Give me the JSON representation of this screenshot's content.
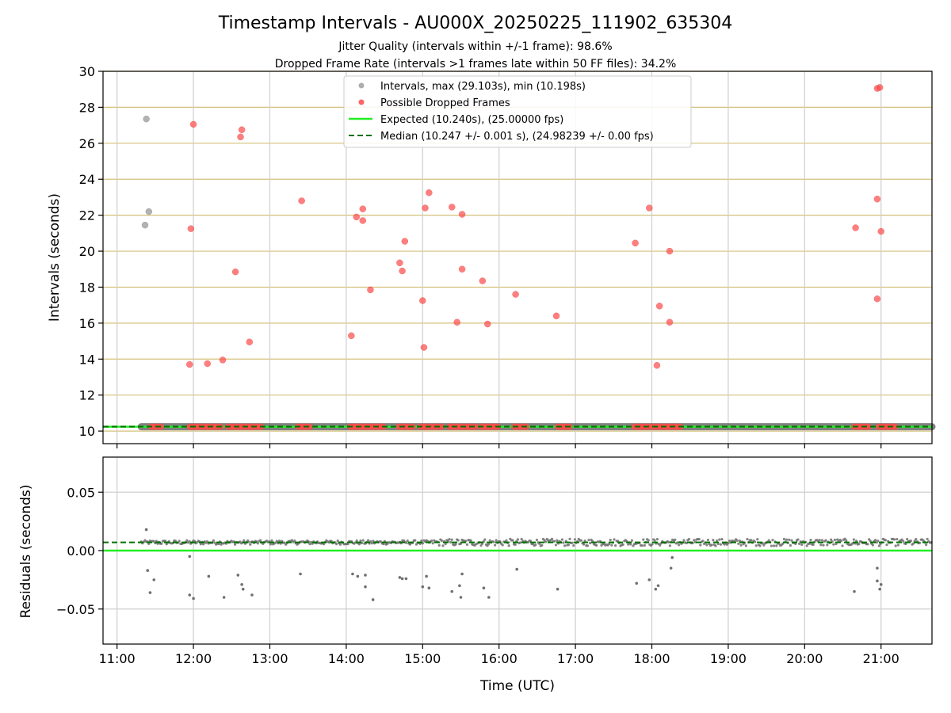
{
  "chart_data": [
    {
      "type": "scatter",
      "title": "Timestamp Intervals - AU000X_20250225_111902_635304",
      "subtitles": [
        "Jitter Quality (intervals within +/-1 frame): 98.6%",
        "Dropped Frame Rate (intervals >1 frames late within 50 FF files): 34.2%"
      ],
      "xlabel": "",
      "ylabel": "Intervals (seconds)",
      "xlim": [
        "10:49",
        "21:40"
      ],
      "ylim": [
        9.3,
        30
      ],
      "yticks": [
        10,
        12,
        14,
        16,
        18,
        20,
        22,
        24,
        26,
        28,
        30
      ],
      "grid_x": true,
      "grid_y": true,
      "grid_y_color": "#d4c07a",
      "legend_position": "upper-center",
      "legend": [
        {
          "label": "Intervals, max (29.103s), min (10.198s)",
          "kind": "marker",
          "color": "#a0a0a0"
        },
        {
          "label": "Possible Dropped Frames",
          "kind": "marker",
          "color": "#ff4a4a"
        },
        {
          "label": "Expected (10.240s), (25.00000 fps)",
          "kind": "solid-line",
          "color": "#22ee22"
        },
        {
          "label": "Median (10.247 +/- 0.001 s), (24.98239 +/- 0.00 fps)",
          "kind": "dashed-line",
          "color": "#007000"
        }
      ],
      "expected": 10.24,
      "median": 10.247,
      "intervals": {
        "name": "Intervals",
        "color": "#a0a0a0",
        "points": [
          [
            "11:23",
            27.35
          ],
          [
            "11:25",
            22.2
          ],
          [
            "11:22",
            21.45
          ]
        ],
        "baseline": {
          "x_start": "11:19",
          "x_end": "21:40",
          "y": 10.24
        }
      },
      "dropped": {
        "name": "Possible Dropped Frames",
        "color": "#ff4a4a",
        "points": [
          [
            "12:00",
            27.05
          ],
          [
            "12:38",
            26.75
          ],
          [
            "12:37",
            26.35
          ],
          [
            "11:58",
            21.25
          ],
          [
            "12:33",
            18.85
          ],
          [
            "12:44",
            14.95
          ],
          [
            "11:57",
            13.7
          ],
          [
            "12:11",
            13.75
          ],
          [
            "12:23",
            13.95
          ],
          [
            "13:25",
            22.8
          ],
          [
            "14:08",
            21.9
          ],
          [
            "14:13",
            22.35
          ],
          [
            "14:13",
            21.7
          ],
          [
            "14:04",
            15.3
          ],
          [
            "14:19",
            17.85
          ],
          [
            "14:42",
            19.35
          ],
          [
            "14:44",
            18.9
          ],
          [
            "14:46",
            20.55
          ],
          [
            "15:00",
            17.25
          ],
          [
            "15:01",
            14.65
          ],
          [
            "15:02",
            22.4
          ],
          [
            "15:05",
            23.25
          ],
          [
            "15:23",
            22.45
          ],
          [
            "15:31",
            22.05
          ],
          [
            "15:31",
            19.0
          ],
          [
            "15:27",
            16.05
          ],
          [
            "15:51",
            15.95
          ],
          [
            "15:47",
            18.35
          ],
          [
            "16:13",
            17.6
          ],
          [
            "16:45",
            16.4
          ],
          [
            "17:47",
            20.45
          ],
          [
            "17:58",
            22.4
          ],
          [
            "18:06",
            16.95
          ],
          [
            "18:04",
            13.65
          ],
          [
            "18:14",
            20.0
          ],
          [
            "18:14",
            16.05
          ],
          [
            "20:40",
            21.3
          ],
          [
            "20:57",
            22.9
          ],
          [
            "20:57",
            17.35
          ],
          [
            "20:57",
            29.05
          ],
          [
            "20:59",
            29.1
          ],
          [
            "21:00",
            21.1
          ]
        ],
        "baseline_clusters": [
          [
            "11:27",
            "11:36"
          ],
          [
            "11:57",
            "12:23"
          ],
          [
            "12:27",
            "12:54"
          ],
          [
            "13:22",
            "13:33"
          ],
          [
            "14:03",
            "14:30"
          ],
          [
            "14:41",
            "14:53"
          ],
          [
            "14:58",
            "15:16"
          ],
          [
            "15:21",
            "15:42"
          ],
          [
            "15:46",
            "16:00"
          ],
          [
            "16:12",
            "16:22"
          ],
          [
            "16:46",
            "16:57"
          ],
          [
            "17:46",
            "17:58"
          ],
          [
            "18:00",
            "18:24"
          ],
          [
            "20:39",
            "20:52"
          ],
          [
            "20:58",
            "21:12"
          ]
        ]
      }
    },
    {
      "type": "scatter",
      "xlabel": "Time (UTC)",
      "ylabel": "Residuals (seconds)",
      "xlim": [
        "10:49",
        "21:40"
      ],
      "ylim": [
        -0.08,
        0.08
      ],
      "yticks": [
        -0.05,
        0.0,
        0.05
      ],
      "ytick_labels": [
        "−0.05",
        "0.00",
        "0.05"
      ],
      "xticks": [
        "11:00",
        "12:00",
        "13:00",
        "14:00",
        "15:00",
        "16:00",
        "17:00",
        "18:00",
        "19:00",
        "20:00",
        "21:00"
      ],
      "grid_x": true,
      "grid_y": true,
      "expected_residual": 0.0,
      "median_residual": 0.007,
      "color": "#707070",
      "residuals": [
        [
          "11:23",
          0.018
        ],
        [
          "11:24",
          -0.017
        ],
        [
          "11:26",
          -0.036
        ],
        [
          "11:29",
          -0.025
        ],
        [
          "11:57",
          -0.005
        ],
        [
          "11:57",
          -0.038
        ],
        [
          "12:00",
          -0.041
        ],
        [
          "12:12",
          -0.022
        ],
        [
          "12:24",
          -0.04
        ],
        [
          "12:35",
          -0.021
        ],
        [
          "12:38",
          -0.029
        ],
        [
          "12:39",
          -0.033
        ],
        [
          "12:46",
          -0.038
        ],
        [
          "13:24",
          -0.02
        ],
        [
          "14:05",
          -0.02
        ],
        [
          "14:09",
          -0.022
        ],
        [
          "14:15",
          -0.021
        ],
        [
          "14:15",
          -0.031
        ],
        [
          "14:21",
          -0.042
        ],
        [
          "14:42",
          -0.023
        ],
        [
          "14:44",
          -0.024
        ],
        [
          "14:47",
          -0.024
        ],
        [
          "15:00",
          -0.031
        ],
        [
          "15:03",
          -0.022
        ],
        [
          "15:05",
          -0.032
        ],
        [
          "15:23",
          -0.035
        ],
        [
          "15:29",
          -0.03
        ],
        [
          "15:30",
          -0.04
        ],
        [
          "15:31",
          -0.02
        ],
        [
          "15:48",
          -0.032
        ],
        [
          "15:52",
          -0.04
        ],
        [
          "16:14",
          -0.016
        ],
        [
          "16:46",
          -0.033
        ],
        [
          "17:48",
          -0.028
        ],
        [
          "17:58",
          -0.025
        ],
        [
          "18:03",
          -0.033
        ],
        [
          "18:05",
          -0.03
        ],
        [
          "18:15",
          -0.015
        ],
        [
          "18:16",
          -0.006
        ],
        [
          "20:39",
          -0.035
        ],
        [
          "20:57",
          -0.015
        ],
        [
          "20:57",
          -0.026
        ],
        [
          "20:59",
          -0.033
        ],
        [
          "21:00",
          -0.029
        ]
      ],
      "dense_band": {
        "x_start": "11:19",
        "x_end": "21:40",
        "center": 0.007,
        "spread": 0.003
      }
    }
  ]
}
